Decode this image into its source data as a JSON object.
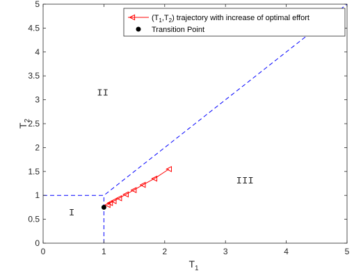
{
  "chart_data": {
    "type": "line",
    "xlabel": "T",
    "xlabel_sub": "1",
    "ylabel": "T",
    "ylabel_sub": "2",
    "xlim": [
      0,
      5
    ],
    "ylim": [
      0,
      5
    ],
    "xticks": [
      "0",
      "1",
      "2",
      "3",
      "4",
      "5"
    ],
    "yticks": [
      "0",
      "0.5",
      "1",
      "1.5",
      "2",
      "2.5",
      "3",
      "3.5",
      "4",
      "4.5",
      "5"
    ],
    "grid": false,
    "legend_placement": "top-right",
    "boundaries": [
      {
        "x": [
          0,
          1,
          5
        ],
        "y": [
          1,
          1,
          5
        ]
      },
      {
        "x": [
          1,
          1
        ],
        "y": [
          0,
          1
        ]
      }
    ],
    "series": [
      {
        "name": "(T1,T2) trajectory with increase of optimal effort",
        "legend_parts": {
          "pre": "(T",
          "sub1": "1",
          "mid": ",T",
          "sub2": "2",
          "post": ") trajectory with increase of optimal effort"
        },
        "color": "#ff0000",
        "marker": "triangle-left",
        "x": [
          1.06,
          1.1,
          1.16,
          1.25,
          1.36,
          1.49,
          1.64,
          1.83,
          2.07
        ],
        "y": [
          0.8,
          0.84,
          0.88,
          0.94,
          1.02,
          1.11,
          1.22,
          1.35,
          1.55
        ]
      },
      {
        "name": "Transition Point",
        "color": "#000000",
        "marker": "circle",
        "x": [
          1.0
        ],
        "y": [
          0.75
        ]
      }
    ],
    "annotations": [
      {
        "text": "I",
        "x": 0.47,
        "y": 0.58
      },
      {
        "text": "II",
        "x": 0.98,
        "y": 3.09
      },
      {
        "text": "III",
        "x": 3.32,
        "y": 1.25
      }
    ],
    "colors": {
      "boundary": "#0000ff",
      "axis": "#262626"
    }
  }
}
